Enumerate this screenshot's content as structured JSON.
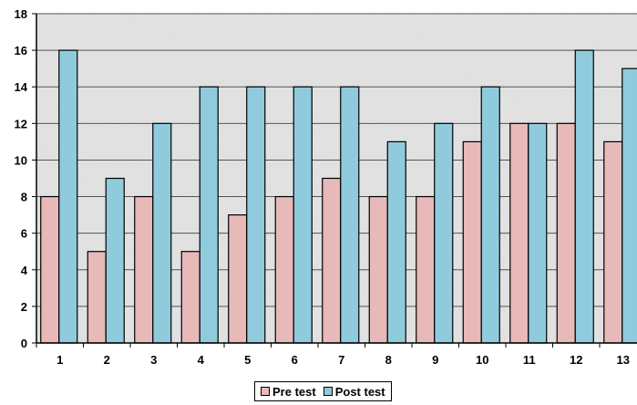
{
  "chart_data": {
    "type": "bar",
    "categories": [
      "1",
      "2",
      "3",
      "4",
      "5",
      "6",
      "7",
      "8",
      "9",
      "10",
      "11",
      "12",
      "13"
    ],
    "series": [
      {
        "name": "Pre test",
        "color": "#e8b9b9",
        "values": [
          8,
          5,
          8,
          5,
          7,
          8,
          9,
          8,
          8,
          11,
          12,
          12,
          11
        ]
      },
      {
        "name": "Post test",
        "color": "#8fcbdc",
        "values": [
          16,
          9,
          12,
          14,
          14,
          14,
          14,
          11,
          12,
          14,
          12,
          16,
          15
        ]
      }
    ],
    "y_ticks": [
      "0",
      "2",
      "4",
      "6",
      "8",
      "10",
      "12",
      "14",
      "16",
      "18"
    ],
    "ylim": [
      0,
      18
    ],
    "grid": true,
    "legend_position": "bottom",
    "title": "",
    "xlabel": "",
    "ylabel": ""
  }
}
